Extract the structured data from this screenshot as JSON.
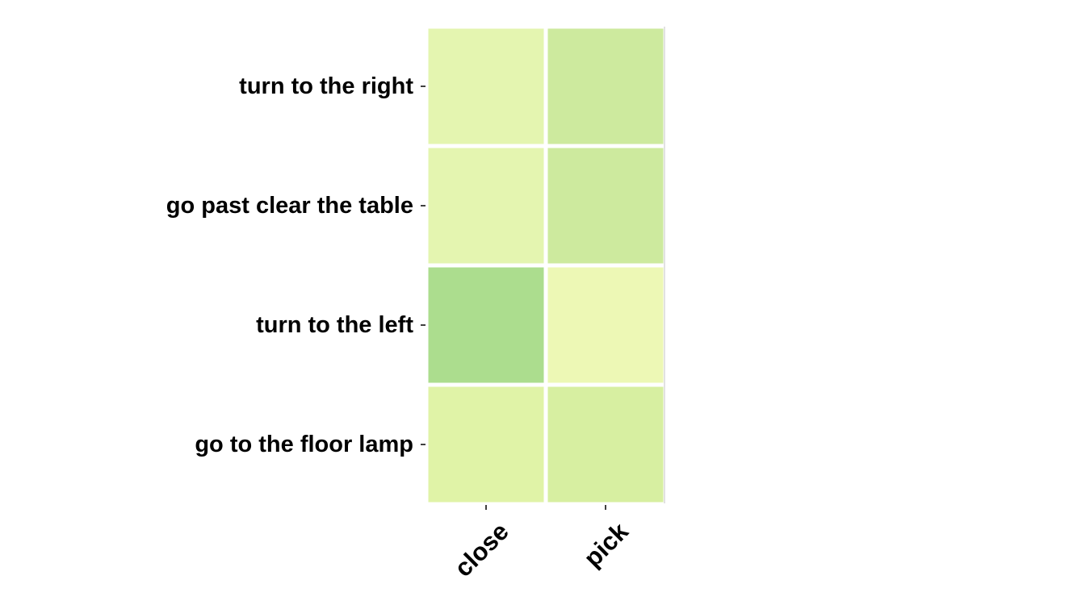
{
  "chart_data": {
    "type": "heatmap",
    "rows": [
      "turn to the right",
      "go past clear the table",
      "turn to the left",
      "go to the floor lamp"
    ],
    "columns": [
      "close",
      "pick"
    ],
    "values": [
      [
        0.18,
        0.3
      ],
      [
        0.18,
        0.3
      ],
      [
        0.42,
        0.12
      ],
      [
        0.22,
        0.25
      ]
    ],
    "cell_colors": [
      [
        "#e4f5b0",
        "#cdea9e"
      ],
      [
        "#e4f5b0",
        "#cdea9e"
      ],
      [
        "#acdd8e",
        "#edf8b5"
      ],
      [
        "#e0f3a7",
        "#d7efa1"
      ]
    ],
    "colormap": "YlGn",
    "colorbar": false,
    "title": "",
    "xlabel": "",
    "ylabel": ""
  }
}
